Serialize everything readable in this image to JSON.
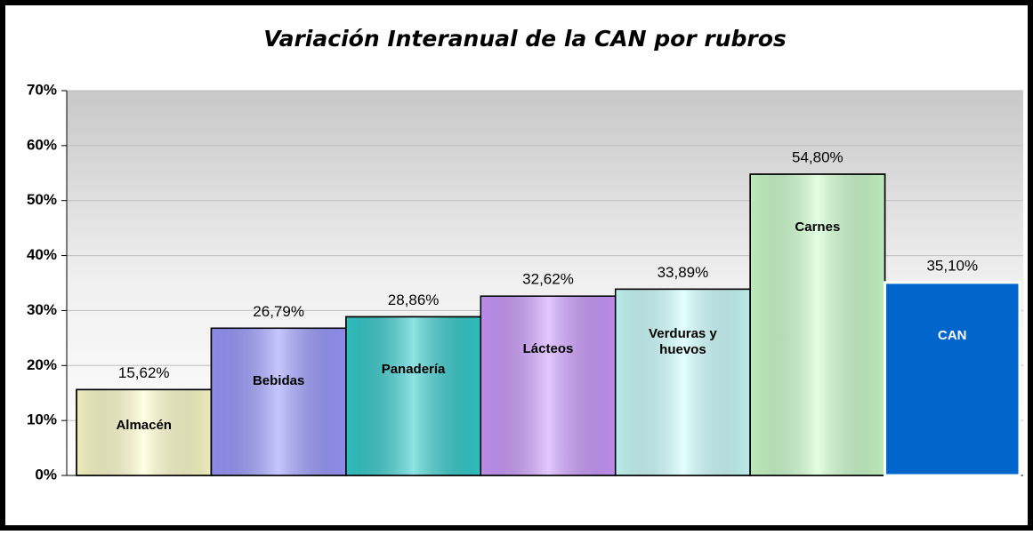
{
  "chart_data": {
    "type": "bar",
    "title": "Variación Interanual de la CAN por rubros",
    "categories": [
      "Almacén",
      "Bebidas",
      "Panadería",
      "Lácteos",
      "Verduras y huevos",
      "Carnes",
      "CAN"
    ],
    "values": [
      15.62,
      26.79,
      28.86,
      32.62,
      33.89,
      54.8,
      35.1
    ],
    "value_labels": [
      "15,62%",
      "26,79%",
      "28,86%",
      "32,62%",
      "33,89%",
      "54,80%",
      "35,10%"
    ],
    "colors": [
      "#ffffcc",
      "#9999ff",
      "#33cccc",
      "#cc99ff",
      "#ccffff",
      "#ccffcc",
      "#0066cc"
    ],
    "ylim": [
      0,
      70
    ],
    "yticks": [
      {
        "value": 0,
        "label": "0%"
      },
      {
        "value": 10,
        "label": "10%"
      },
      {
        "value": 20,
        "label": "20%"
      },
      {
        "value": 30,
        "label": "30%"
      },
      {
        "value": 40,
        "label": "40%"
      },
      {
        "value": 50,
        "label": "50%"
      },
      {
        "value": 60,
        "label": "60%"
      },
      {
        "value": 70,
        "label": "70%"
      }
    ],
    "grid": true
  }
}
